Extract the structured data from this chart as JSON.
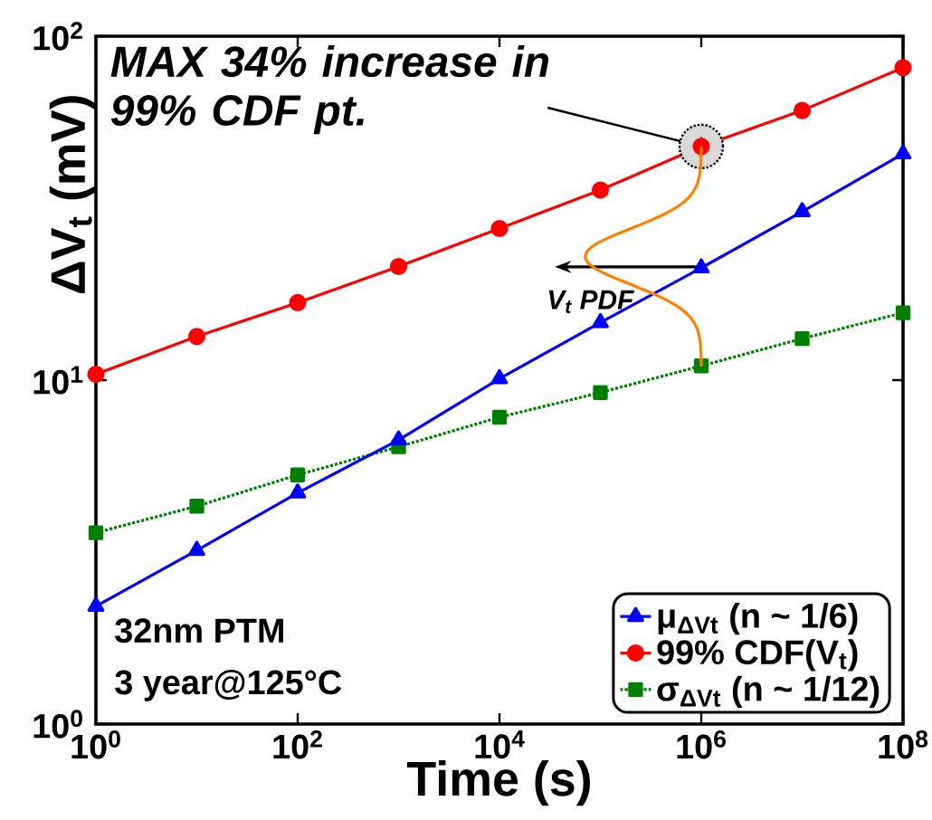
{
  "chart_data": {
    "type": "line",
    "xlabel": "Time (s)",
    "ylabel": "ΔV$_{t}$ (mV)",
    "log": "xy",
    "grid": false,
    "legend": "bottom right",
    "xlim": [
      1,
      100000000
    ],
    "ylim": [
      1,
      100
    ],
    "xticks": [
      {
        "value": 1,
        "label": "10$^{0}$"
      },
      {
        "value": 100,
        "label": "10$^{2}$"
      },
      {
        "value": 10000,
        "label": "10$^{4}$"
      },
      {
        "value": 1000000,
        "label": "10$^{6}$"
      },
      {
        "value": 100000000,
        "label": "10$^{8}$"
      }
    ],
    "yticks": [
      {
        "value": 1,
        "label": "10$^{0}$"
      },
      {
        "value": 10,
        "label": "10$^{1}$"
      },
      {
        "value": 100,
        "label": "10$^{2}$"
      }
    ],
    "x": [
      1,
      10,
      100,
      1000,
      10000,
      100000,
      1000000,
      10000000,
      100000000
    ],
    "series": [
      {
        "name": "μ$_{ΔVt}$ (n ~ 1/6)",
        "color": "#0000ff",
        "marker": "triangle",
        "line_style": "solid",
        "values": [
          2.2,
          3.2,
          4.7,
          6.7,
          10.1,
          14.7,
          21.2,
          30.9,
          45.5
        ]
      },
      {
        "name": "99% CDF(V$_{t}$)",
        "color": "#ff0000",
        "marker": "circle",
        "line_style": "solid",
        "values": [
          10.4,
          13.4,
          16.8,
          21.4,
          27.6,
          35.7,
          47.8,
          60.8,
          81
        ]
      },
      {
        "name": "σ$_{ΔVt}$ (n ~ 1/12)",
        "color": "#008000",
        "marker": "square",
        "line_style": "dotted",
        "values": [
          3.6,
          4.3,
          5.3,
          6.4,
          7.8,
          9.2,
          11.0,
          13.2,
          15.7
        ]
      }
    ],
    "annotations": [
      {
        "text": "MAX 34% increase in 99% CDF pt.",
        "x": 1000000,
        "y": 47.8
      },
      "V$_{t}$ PDF",
      "32nm PTM",
      "3 year@125°C"
    ]
  }
}
